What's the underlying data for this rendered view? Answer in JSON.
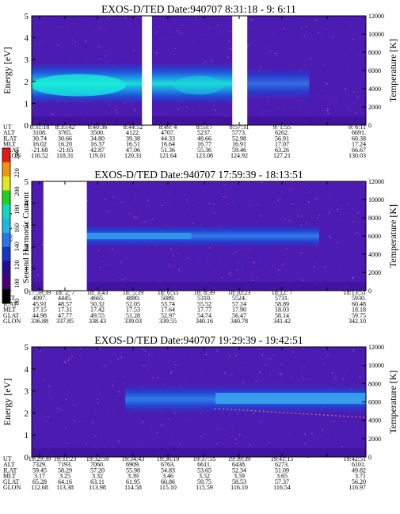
{
  "colors": {
    "cbar": [
      "#000000",
      "#4a007a",
      "#250e91",
      "#1536c4",
      "#2a74e4",
      "#1fb8e0",
      "#12d8c2",
      "#1ed11e",
      "#e5e51a",
      "#f0960c",
      "#e11a1a"
    ]
  },
  "colorbar": {
    "label": "Second Harmonic Current",
    "ticks": [
      "240",
      "220",
      "200",
      "180",
      "160",
      "140",
      "120",
      "100",
      "80"
    ]
  },
  "chart_data": [
    {
      "type": "heatmap",
      "title": "EXOS-D/TED   Date:940707   8:31:18 - 9: 6:11",
      "ylabel": "Energy [eV]",
      "y2label": "Temperature [K]",
      "yticks": [
        "0",
        "1",
        "2",
        "3",
        "4",
        "5"
      ],
      "y2ticks": [
        "0",
        "2000",
        "4000",
        "6000",
        "8000",
        "10000",
        "12000"
      ],
      "ylim": [
        0,
        5
      ],
      "y2lim": [
        0,
        12000
      ],
      "gaps": [
        [
          0.33,
          0.36
        ],
        [
          0.6,
          0.645
        ]
      ],
      "band": {
        "start": 0.0,
        "end": 0.83,
        "center_eV": 1.9
      },
      "ephemeris": {
        "labels": [
          "UT",
          "ALT",
          "ILAT",
          "MLT",
          "GLAT",
          "GLON"
        ],
        "columns": [
          [
            "8:31:18",
            "3108.",
            "30.74",
            "16.02",
            "-21.68",
            "116.52"
          ],
          [
            "8:35:42",
            "3765.",
            "30.66",
            "16.20",
            "-21.65",
            "118.31"
          ],
          [
            "8:40:36",
            "3500.",
            "34.80",
            "16.37",
            "42.87",
            "119.01"
          ],
          [
            "8:44:52",
            "4122.",
            "39.38",
            "16.51",
            "47.06",
            "120.31"
          ],
          [
            "8:49: 4",
            "4707.",
            "44.33",
            "16.64",
            "51.36",
            "121.64"
          ],
          [
            "8:53:7",
            "5237.",
            "48.66",
            "16.77",
            "55.36",
            "123.08"
          ],
          [
            "8:57:31",
            "5773.",
            "52.98",
            "16.91",
            "59.46",
            "124.92"
          ],
          [
            "9: 1:55",
            "6262.",
            "56.91",
            "17.07",
            "63.26",
            "127.21"
          ],
          [
            "9: 6:11",
            "6691.",
            "60.38",
            "17.24",
            "66.67",
            "130.03"
          ]
        ]
      }
    },
    {
      "type": "heatmap",
      "title": "EXOS-D/TED   Date:940707   17:59:39 - 18:13:51",
      "ylabel": "Energy [eV]",
      "y2label": "Temperature [K]",
      "yticks": [
        "0",
        "1",
        "2",
        "3",
        "4",
        "5"
      ],
      "y2ticks": [
        "0",
        "2000",
        "4000",
        "6000",
        "8000",
        "10000",
        "12000"
      ],
      "ylim": [
        0,
        5
      ],
      "y2lim": [
        0,
        12000
      ],
      "gaps": [
        [
          0.035,
          0.165
        ]
      ],
      "band": {
        "start": 0.165,
        "end": 0.86,
        "center_eV": 2.5
      },
      "ephemeris": {
        "labels": [
          "UT",
          "ALT",
          "ILAT",
          "MLT",
          "GLAT",
          "GLON"
        ],
        "columns": [
          [
            "17:59:39",
            "4097.",
            "45.91",
            "17.15",
            "44.98",
            "336.88"
          ],
          [
            "18: 2: 7",
            "4445.",
            "48.57",
            "17.31",
            "47.77",
            "337.85"
          ],
          [
            "18: 3:43",
            "4665.",
            "50.32",
            "17.42",
            "49.55",
            "338.43"
          ],
          [
            "18: 5:19",
            "4880.",
            "52.05",
            "17.53",
            "51.28",
            "339.03"
          ],
          [
            "18: 6:55",
            "5089.",
            "53.74",
            "17.64",
            "52.97",
            "339.55"
          ],
          [
            "18: 8:39",
            "5310.",
            "55.52",
            "17.77",
            "54.74",
            "340.16"
          ],
          [
            "18:10:23",
            "5524.",
            "57.24",
            "17.90",
            "56.47",
            "340.78"
          ],
          [
            "18:12: 7",
            "5731.",
            "58.89",
            "18.03",
            "58.14",
            "341.42"
          ],
          [
            "18:13:51",
            "5930.",
            "60.48",
            "18.18",
            "59.75",
            "342.10"
          ]
        ]
      }
    },
    {
      "type": "heatmap",
      "title": "EXOS-D/TED   Date:940707   19:29:39 - 19:42:51",
      "ylabel": "Energy [eV]",
      "y2label": "Temperature [K]",
      "yticks": [
        "0",
        "1",
        "2",
        "3",
        "4",
        "5"
      ],
      "y2ticks": [
        "0",
        "2000",
        "4000",
        "6000",
        "8000",
        "10000",
        "12000"
      ],
      "ylim": [
        0,
        5
      ],
      "y2lim": [
        0,
        12000
      ],
      "gaps": [],
      "band": {
        "start": 0.28,
        "end": 1.0,
        "center_eV": 2.7
      },
      "ephemeris": {
        "labels": [
          "UT",
          "ALT",
          "ILAT",
          "MLT",
          "GLAT",
          "GLON"
        ],
        "columns": [
          [
            "19:29:39",
            "7329.",
            "59.45",
            "3.17",
            "65.28",
            "112.68"
          ],
          [
            "19:31:23",
            "7193.",
            "58.29",
            "3.25",
            "64.16",
            "113.38"
          ],
          [
            "19:32:59",
            "7060.",
            "57.20",
            "3.32",
            "63.11",
            "113.98"
          ],
          [
            "19:34:43",
            "6909.",
            "55.98",
            "3.39",
            "61.95",
            "114.58"
          ],
          [
            "19:36:19",
            "6763.",
            "54.83",
            "3.46",
            "60.86",
            "115.10"
          ],
          [
            "19:37:55",
            "6611.",
            "53.65",
            "3.52",
            "59.75",
            "115.59"
          ],
          [
            "19:39:39",
            "6438.",
            "52.34",
            "3.59",
            "58.53",
            "116.10"
          ],
          [
            "19:41:15",
            "6273.",
            "51.09",
            "3.65",
            "57.37",
            "116.54"
          ],
          [
            "19:42:51",
            "6101.",
            "49.82",
            "3.71",
            "56.20",
            "116.97"
          ]
        ]
      }
    }
  ]
}
